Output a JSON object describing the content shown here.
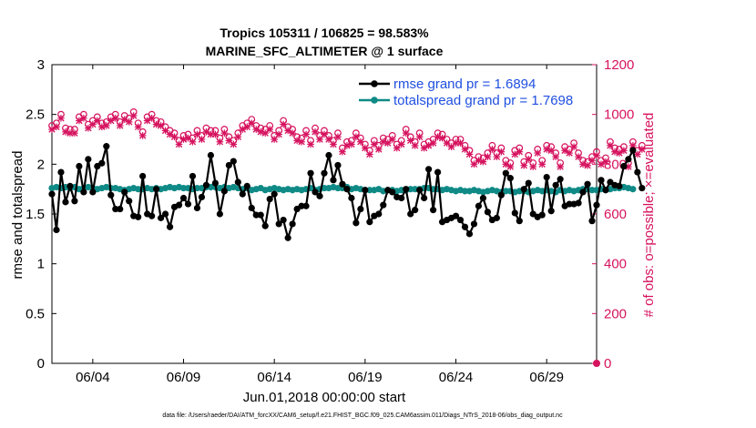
{
  "chart_data": {
    "type": "line",
    "title_line1": "Tropics 105311 / 106825 = 98.583%",
    "title_line2": "MARINE_SFC_ALTIMETER @ 1 surface",
    "xlabel": "Jun.01,2018 00:00:00 start",
    "ylabel_left": "rmse and totalspread",
    "ylabel_right": "# of obs: o=possible; ×=evaluated",
    "left_axis": {
      "ylim": [
        0,
        3
      ],
      "ticks": [
        "0",
        "0.5",
        "1",
        "1.5",
        "2",
        "2.5",
        "3"
      ]
    },
    "right_axis": {
      "ylim": [
        0,
        1200
      ],
      "ticks": [
        "0",
        "200",
        "400",
        "600",
        "800",
        "1000",
        "1200"
      ]
    },
    "xlim_days": [
      0.75,
      30.75
    ],
    "x_ticks": [
      {
        "day": 3.0,
        "label": "06/04"
      },
      {
        "day": 8.0,
        "label": "06/09"
      },
      {
        "day": 13.0,
        "label": "06/14"
      },
      {
        "day": 18.0,
        "label": "06/19"
      },
      {
        "day": 23.0,
        "label": "06/24"
      },
      {
        "day": 28.0,
        "label": "06/29"
      }
    ],
    "legend": [
      {
        "name": "rmse grand pr = 1.6894",
        "color": "#000000"
      },
      {
        "name": "totalspread grand pr = 1.7698",
        "color": "#0f8a86"
      }
    ],
    "series_step_days": 0.25,
    "series_start_day": 0.75,
    "rmse": [
      1.7,
      1.34,
      1.92,
      1.62,
      1.78,
      1.63,
      1.98,
      1.72,
      2.05,
      1.72,
      1.98,
      2.01,
      2.18,
      1.69,
      1.55,
      1.55,
      1.72,
      1.63,
      1.48,
      1.47,
      1.88,
      1.5,
      1.48,
      1.75,
      1.46,
      1.5,
      1.37,
      1.57,
      1.59,
      1.66,
      1.6,
      1.88,
      1.56,
      1.67,
      1.79,
      2.09,
      1.81,
      1.5,
      1.73,
      1.99,
      2.03,
      1.82,
      1.7,
      1.78,
      1.56,
      1.49,
      1.49,
      1.38,
      1.65,
      1.7,
      1.4,
      1.44,
      1.26,
      1.4,
      1.55,
      1.58,
      1.58,
      1.91,
      1.72,
      1.68,
      1.91,
      2.09,
      1.84,
      1.99,
      1.8,
      1.75,
      1.66,
      1.41,
      1.55,
      1.74,
      1.42,
      1.48,
      1.5,
      1.59,
      1.74,
      1.72,
      1.67,
      1.66,
      1.75,
      1.5,
      1.54,
      1.74,
      1.66,
      1.95,
      1.54,
      1.92,
      1.42,
      1.44,
      1.46,
      1.48,
      1.44,
      1.37,
      1.3,
      1.4,
      1.58,
      1.66,
      1.52,
      1.44,
      1.46,
      1.69,
      1.91,
      1.86,
      1.51,
      1.43,
      1.75,
      1.81,
      1.5,
      1.47,
      1.49,
      1.87,
      1.53,
      1.79,
      1.85,
      1.58,
      1.6,
      1.6,
      1.61,
      1.72,
      1.8,
      1.43,
      1.59,
      1.84,
      1.74,
      1.82,
      1.79,
      1.78,
      1.98,
      2.05,
      2.14,
      1.92,
      1.76
    ],
    "totalspread": [
      1.76,
      1.77,
      1.76,
      1.77,
      1.76,
      1.77,
      1.75,
      1.76,
      1.77,
      1.76,
      1.75,
      1.76,
      1.77,
      1.76,
      1.76,
      1.75,
      1.74,
      1.75,
      1.76,
      1.75,
      1.75,
      1.76,
      1.75,
      1.76,
      1.75,
      1.76,
      1.77,
      1.76,
      1.77,
      1.76,
      1.76,
      1.75,
      1.76,
      1.76,
      1.77,
      1.77,
      1.77,
      1.76,
      1.77,
      1.76,
      1.77,
      1.76,
      1.75,
      1.76,
      1.74,
      1.75,
      1.76,
      1.74,
      1.75,
      1.76,
      1.75,
      1.74,
      1.75,
      1.74,
      1.75,
      1.74,
      1.75,
      1.76,
      1.74,
      1.75,
      1.76,
      1.76,
      1.77,
      1.76,
      1.76,
      1.77,
      1.75,
      1.76,
      1.75,
      1.74,
      1.74,
      1.74,
      1.75,
      1.73,
      1.74,
      1.74,
      1.73,
      1.74,
      1.74,
      1.75,
      1.75,
      1.75,
      1.76,
      1.76,
      1.75,
      1.75,
      1.74,
      1.75,
      1.74,
      1.73,
      1.74,
      1.73,
      1.73,
      1.74,
      1.73,
      1.72,
      1.73,
      1.74,
      1.73,
      1.72,
      1.73,
      1.73,
      1.72,
      1.73,
      1.73,
      1.72,
      1.73,
      1.74,
      1.73,
      1.74,
      1.73,
      1.72,
      1.74,
      1.73,
      1.74,
      1.73,
      1.74,
      1.75,
      1.75,
      1.74,
      1.74,
      1.75,
      1.74,
      1.75,
      1.76,
      1.76,
      1.77,
      1.76,
      1.75
    ],
    "obs_evaluated": [
      940,
      950,
      985,
      930,
      925,
      925,
      975,
      985,
      945,
      960,
      975,
      950,
      955,
      975,
      985,
      955,
      980,
      970,
      995,
      950,
      915,
      975,
      985,
      960,
      955,
      935,
      920,
      910,
      880,
      900,
      905,
      890,
      920,
      900,
      930,
      920,
      920,
      890,
      925,
      895,
      880,
      910,
      940,
      950,
      965,
      940,
      930,
      925,
      940,
      900,
      920,
      960,
      935,
      925,
      895,
      890,
      920,
      880,
      930,
      900,
      920,
      900,
      880,
      910,
      850,
      875,
      880,
      910,
      890,
      865,
      840,
      880,
      860,
      890,
      885,
      900,
      865,
      880,
      925,
      895,
      875,
      910,
      865,
      875,
      885,
      910,
      905,
      885,
      870,
      885,
      885,
      860,
      840,
      800,
      815,
      810,
      830,
      860,
      830,
      850,
      800,
      790,
      840,
      850,
      795,
      820,
      790,
      845,
      800,
      860,
      855,
      830,
      790,
      855,
      845,
      870,
      830,
      800,
      795,
      815,
      835,
      800,
      810,
      875,
      850,
      845,
      855,
      790,
      875,
      840,
      860
    ],
    "obs_possible": [
      955,
      965,
      1000,
      945,
      940,
      940,
      990,
      1000,
      960,
      975,
      990,
      965,
      970,
      990,
      1000,
      970,
      995,
      985,
      1010,
      965,
      930,
      990,
      1000,
      975,
      970,
      950,
      935,
      925,
      895,
      915,
      920,
      905,
      935,
      915,
      945,
      935,
      935,
      905,
      940,
      910,
      895,
      925,
      955,
      965,
      980,
      955,
      945,
      940,
      955,
      915,
      935,
      975,
      950,
      940,
      910,
      905,
      935,
      895,
      945,
      915,
      935,
      915,
      895,
      925,
      865,
      890,
      895,
      925,
      905,
      880,
      855,
      895,
      875,
      905,
      900,
      915,
      880,
      895,
      940,
      910,
      890,
      925,
      880,
      890,
      900,
      925,
      920,
      900,
      885,
      900,
      900,
      875,
      855,
      815,
      830,
      825,
      845,
      875,
      845,
      865,
      815,
      805,
      855,
      865,
      810,
      835,
      805,
      860,
      815,
      875,
      870,
      845,
      805,
      870,
      860,
      885,
      845,
      815,
      810,
      830,
      850,
      815,
      825,
      890,
      865,
      860,
      870,
      805,
      890,
      855,
      875
    ],
    "obs_extra_point": {
      "day": 30.75,
      "value": 0
    }
  },
  "footnote": "data file: /Users/raeder/DAI/ATM_forcXX/CAM6_setup/f.e21.FHIST_BGC.f09_025.CAM6assim.011/Diags_NTrS_2018-06/obs_diag_output.nc",
  "colors": {
    "rmse": "#000000",
    "spread": "#0f8a86",
    "obs": "#d6135f",
    "legend_text": "#1f4fe0"
  }
}
